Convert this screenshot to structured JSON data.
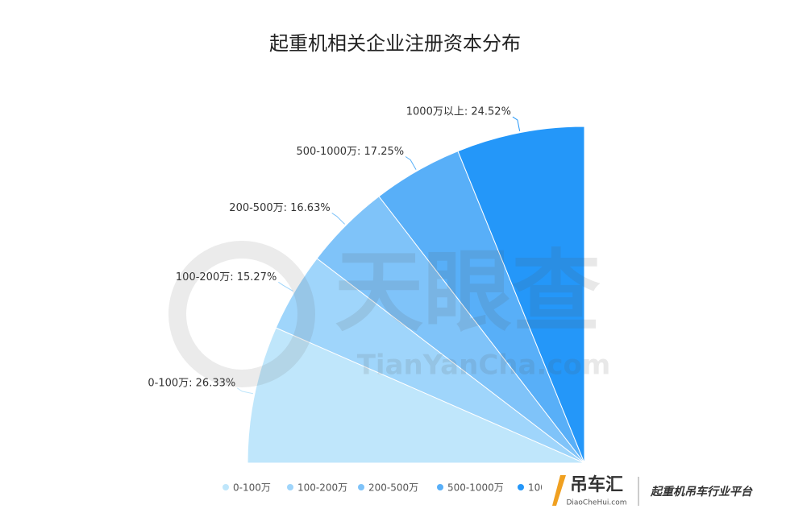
{
  "chart_data": {
    "type": "pie",
    "title": "起重机相关企业注册资本分布",
    "categories": [
      "0-100万",
      "100-200万",
      "200-500万",
      "500-1000万",
      "1000万以上"
    ],
    "values": [
      26.33,
      15.27,
      16.63,
      17.25,
      24.52
    ],
    "value_labels": [
      "0-100万: 26.33%",
      "100-200万: 15.27%",
      "200-500万: 16.63%",
      "500-1000万: 17.25%",
      "1000万以上: 24.52%"
    ],
    "colors": [
      "#bfe6fb",
      "#9fd5fb",
      "#7fc3f9",
      "#58aff8",
      "#2497f9"
    ],
    "legend": "bottom"
  },
  "watermark": {
    "main": "天眼查",
    "sub": "TianYanCha.com"
  },
  "logo": {
    "name": "吊车汇",
    "site": "DiaoCheHui.com",
    "slogan": "起重机吊车行业平台"
  }
}
